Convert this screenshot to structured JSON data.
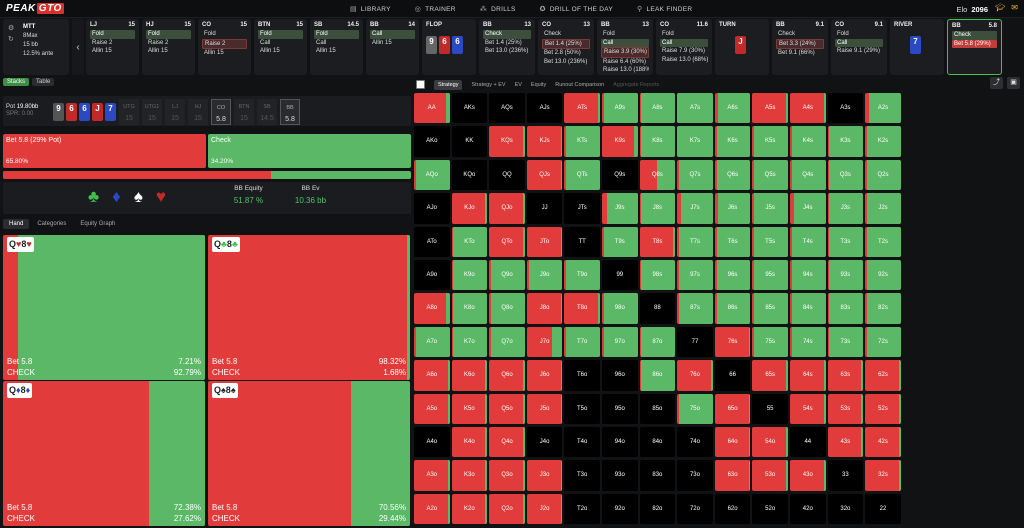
{
  "app": {
    "logo_a": "PEAK",
    "logo_b": "GTO"
  },
  "nav": [
    {
      "icon": "library-icon",
      "glyph": "▤",
      "label": "LIBRARY"
    },
    {
      "icon": "trainer-icon",
      "glyph": "◎",
      "label": "TRAINER"
    },
    {
      "icon": "drills-icon",
      "glyph": "⁂",
      "label": "DRILLS"
    },
    {
      "icon": "drill-of-day-icon",
      "glyph": "✪",
      "label": "DRILL OF THE DAY"
    },
    {
      "icon": "leak-finder-icon",
      "glyph": "⚲",
      "label": "LEAK FINDER"
    }
  ],
  "elo": {
    "label": "Elo",
    "value": "2096"
  },
  "setup": {
    "format": "MTT",
    "players": "8Max",
    "stack": "15 bb",
    "ante": "12.5% ante"
  },
  "seats": [
    {
      "pos": "LJ",
      "stack": "15",
      "options": [
        {
          "t": "Fold",
          "s": "sel"
        },
        {
          "t": "Raise 2",
          "s": ""
        },
        {
          "t": "Allin 15",
          "s": ""
        }
      ]
    },
    {
      "pos": "HJ",
      "stack": "15",
      "options": [
        {
          "t": "Fold",
          "s": "sel"
        },
        {
          "t": "Raise 2",
          "s": ""
        },
        {
          "t": "Allin 15",
          "s": ""
        }
      ]
    },
    {
      "pos": "CO",
      "stack": "15",
      "options": [
        {
          "t": "Fold",
          "s": ""
        },
        {
          "t": "Raise 2",
          "s": "red"
        },
        {
          "t": "Allin 15",
          "s": ""
        }
      ]
    },
    {
      "pos": "BTN",
      "stack": "15",
      "options": [
        {
          "t": "Fold",
          "s": "sel"
        },
        {
          "t": "Call",
          "s": ""
        },
        {
          "t": "Allin 15",
          "s": ""
        }
      ]
    },
    {
      "pos": "SB",
      "stack": "14.5",
      "options": [
        {
          "t": "Fold",
          "s": "sel"
        },
        {
          "t": "Call",
          "s": ""
        },
        {
          "t": "Allin 15",
          "s": ""
        }
      ]
    },
    {
      "pos": "BB",
      "stack": "14",
      "options": [
        {
          "t": "Call",
          "s": "sel"
        },
        {
          "t": "Allin 15",
          "s": ""
        }
      ]
    },
    {
      "pos": "FLOP",
      "stack": "",
      "options": []
    },
    {
      "pos": "BB",
      "stack": "13",
      "options": [
        {
          "t": "Check",
          "s": "sel"
        },
        {
          "t": "Bet 1.4 (25%)",
          "s": ""
        },
        {
          "t": "Bet 13.0 (236%)",
          "s": ""
        }
      ]
    },
    {
      "pos": "CO",
      "stack": "13",
      "options": [
        {
          "t": "Check",
          "s": ""
        },
        {
          "t": "Bet 1.4 (25%)",
          "s": "red"
        },
        {
          "t": "Bet 2.8 (50%)",
          "s": ""
        },
        {
          "t": "Bet 13.0 (236%)",
          "s": ""
        }
      ]
    },
    {
      "pos": "BB",
      "stack": "13",
      "options": [
        {
          "t": "Fold",
          "s": ""
        },
        {
          "t": "Call",
          "s": "sel"
        },
        {
          "t": "Raise 3.9 (30%)",
          "s": "red"
        },
        {
          "t": "Raise 6.4 (60%)",
          "s": ""
        },
        {
          "t": "Raise 13.0 (188%)",
          "s": ""
        }
      ]
    },
    {
      "pos": "CO",
      "stack": "11.6",
      "options": [
        {
          "t": "Fold",
          "s": ""
        },
        {
          "t": "Call",
          "s": "sel"
        },
        {
          "t": "Raise 7.9 (30%)",
          "s": ""
        },
        {
          "t": "Raise 13.0 (68%)",
          "s": ""
        }
      ]
    },
    {
      "pos": "TURN",
      "stack": "",
      "options": []
    },
    {
      "pos": "BB",
      "stack": "9.1",
      "options": [
        {
          "t": "Check",
          "s": ""
        },
        {
          "t": "Bet 3.3 (24%)",
          "s": "red"
        },
        {
          "t": "Bet 9.1 (66%)",
          "s": ""
        }
      ]
    },
    {
      "pos": "CO",
      "stack": "9.1",
      "options": [
        {
          "t": "Fold",
          "s": ""
        },
        {
          "t": "Call",
          "s": "sel"
        },
        {
          "t": "Raise 9.1 (29%)",
          "s": ""
        }
      ]
    },
    {
      "pos": "RIVER",
      "stack": "",
      "options": []
    },
    {
      "pos": "BB",
      "stack": "5.8",
      "options": [
        {
          "t": "Check",
          "s": "sel"
        },
        {
          "t": "Bet 5.8 (29%)",
          "s": "selr"
        }
      ]
    }
  ],
  "flop_cards": [
    {
      "r": "9",
      "c": "g"
    },
    {
      "r": "6",
      "c": "r"
    },
    {
      "r": "6",
      "c": "b"
    }
  ],
  "turn_card": {
    "r": "J",
    "c": "r"
  },
  "river_card": {
    "r": "7",
    "c": "b"
  },
  "left": {
    "tabs": [
      {
        "label": "Stacks",
        "on": true
      },
      {
        "label": "Table",
        "on": false
      }
    ],
    "pot_label": "Pot",
    "pot_value": "19.80bb",
    "spr": "SPR: 0.00",
    "board": [
      {
        "r": "9",
        "c": "g"
      },
      {
        "r": "6",
        "c": "r"
      },
      {
        "r": "6",
        "c": "b"
      },
      {
        "r": "J",
        "c": "r"
      },
      {
        "r": "7",
        "c": "b"
      }
    ],
    "stacks": [
      {
        "p": "UTG",
        "n": "15",
        "on": false
      },
      {
        "p": "UTG1",
        "n": "15",
        "on": false
      },
      {
        "p": "LJ",
        "n": "15",
        "on": false
      },
      {
        "p": "HJ",
        "n": "15",
        "on": false
      },
      {
        "p": "CO",
        "n": "5.8",
        "on": true
      },
      {
        "p": "BTN",
        "n": "15",
        "on": false
      },
      {
        "p": "SB",
        "n": "14.5",
        "on": false
      },
      {
        "p": "BB",
        "n": "5.8",
        "on": true
      }
    ],
    "actions": [
      {
        "label": "Bet 5.8 (29% Pot)",
        "pct": "65.80%",
        "freq": 65.8,
        "color": "#e23b3b"
      },
      {
        "label": "Check",
        "pct": "34.20%",
        "freq": 34.2,
        "color": "#5bb866"
      }
    ],
    "suits": [
      {
        "g": "♣",
        "c": "#3ec24d",
        "n": "club-icon"
      },
      {
        "g": "♦",
        "c": "#2a49c2",
        "n": "diamond-icon"
      },
      {
        "g": "♠",
        "c": "#ffffff",
        "n": "spade-icon"
      },
      {
        "g": "♥",
        "c": "#c22a2a",
        "n": "heart-icon"
      }
    ],
    "equity_label": "BB Equity",
    "equity_value": "51.87 %",
    "ev_label": "BB Ev",
    "ev_value": "10.36 bb",
    "subtabs": [
      {
        "label": "Hand",
        "on": true
      },
      {
        "label": "Categories",
        "on": false
      },
      {
        "label": "Equity Graph",
        "on": false
      }
    ],
    "hands": [
      {
        "r1": "Q",
        "s1": "♥",
        "c1": "#c22a2a",
        "r2": "8",
        "s2": "♥",
        "c2": "#c22a2a",
        "bet": "Bet 5.8",
        "betp": "7.21%",
        "chk": "CHECK",
        "chkp": "92.79%",
        "betf": 7.21
      },
      {
        "r1": "Q",
        "s1": "♣",
        "c1": "#3ec24d",
        "r2": "8",
        "s2": "♣",
        "c2": "#3ec24d",
        "bet": "Bet 5.8",
        "betp": "98.32%",
        "chk": "CHECK",
        "chkp": "1.68%",
        "betf": 98.32
      },
      {
        "r1": "Q",
        "s1": "♦",
        "c1": "#2a49c2",
        "r2": "8",
        "s2": "♦",
        "c2": "#2a49c2",
        "bet": "Bet 5.8",
        "betp": "72.38%",
        "chk": "CHECK",
        "chkp": "27.62%",
        "betf": 72.38
      },
      {
        "r1": "Q",
        "s1": "♠",
        "c1": "#222",
        "r2": "8",
        "s2": "♠",
        "c2": "#222",
        "bet": "Bet 5.8",
        "betp": "70.56%",
        "chk": "CHECK",
        "chkp": "29.44%",
        "betf": 70.56
      }
    ]
  },
  "right": {
    "tabs": [
      {
        "label": "Strategy",
        "on": true,
        "dim": false
      },
      {
        "label": "Strategy + EV",
        "on": false,
        "dim": false
      },
      {
        "label": "EV",
        "on": false,
        "dim": false
      },
      {
        "label": "Equity",
        "on": false,
        "dim": false
      },
      {
        "label": "Runout Comparison",
        "on": false,
        "dim": false
      },
      {
        "label": "Aggregate Reports",
        "on": false,
        "dim": true
      }
    ],
    "ranks": [
      "A",
      "K",
      "Q",
      "J",
      "T",
      "9",
      "8",
      "7",
      "6",
      "5",
      "4",
      "3",
      "2"
    ],
    "green_frac": [
      [
        0.1,
        null,
        null,
        null,
        0.05,
        0.95,
        0.95,
        1,
        0.9,
        0.05,
        0.05,
        null,
        0.9
      ],
      [
        null,
        null,
        0.05,
        0.05,
        0.95,
        0.1,
        0.95,
        1,
        0.95,
        0.95,
        0.95,
        0.95,
        0.95
      ],
      [
        0.95,
        null,
        null,
        0.05,
        0.95,
        null,
        0.5,
        0.95,
        0.95,
        0.95,
        0.95,
        0.95,
        0.95
      ],
      [
        null,
        0.05,
        0.05,
        null,
        null,
        0.85,
        0.95,
        0.9,
        0.9,
        0.95,
        0.9,
        0.95,
        0.95
      ],
      [
        null,
        0.95,
        0.05,
        0.05,
        null,
        0.95,
        0.05,
        0.95,
        0.95,
        0.95,
        0.95,
        0.95,
        0.95
      ],
      [
        null,
        0.95,
        0.95,
        0.95,
        0.95,
        null,
        0.95,
        0.95,
        0.95,
        0.95,
        0.95,
        0.95,
        0.95
      ],
      [
        0.1,
        0.95,
        0.95,
        0.05,
        0.05,
        0.95,
        null,
        0.95,
        0.95,
        0.95,
        0.95,
        0.95,
        0.95
      ],
      [
        0.95,
        0.95,
        0.95,
        0.3,
        0.95,
        0.95,
        0.95,
        null,
        0.05,
        0.95,
        0.95,
        0.95,
        0.95
      ],
      [
        0.05,
        0.05,
        0.05,
        0.05,
        null,
        null,
        0.95,
        0.05,
        null,
        0.05,
        0.05,
        0.05,
        0.05
      ],
      [
        0.05,
        0.05,
        0.05,
        0.05,
        null,
        null,
        null,
        0.95,
        0.05,
        null,
        0.05,
        0.05,
        0.05
      ],
      [
        null,
        0.05,
        0.05,
        null,
        null,
        null,
        null,
        null,
        0.05,
        0.05,
        null,
        0.05,
        0.05
      ],
      [
        0.05,
        0.05,
        0.05,
        0.05,
        null,
        null,
        null,
        null,
        0.05,
        0.05,
        0.05,
        null,
        0.05
      ],
      [
        0.05,
        0.05,
        0.05,
        0.05,
        null,
        null,
        null,
        null,
        null,
        null,
        null,
        null,
        null
      ]
    ]
  }
}
